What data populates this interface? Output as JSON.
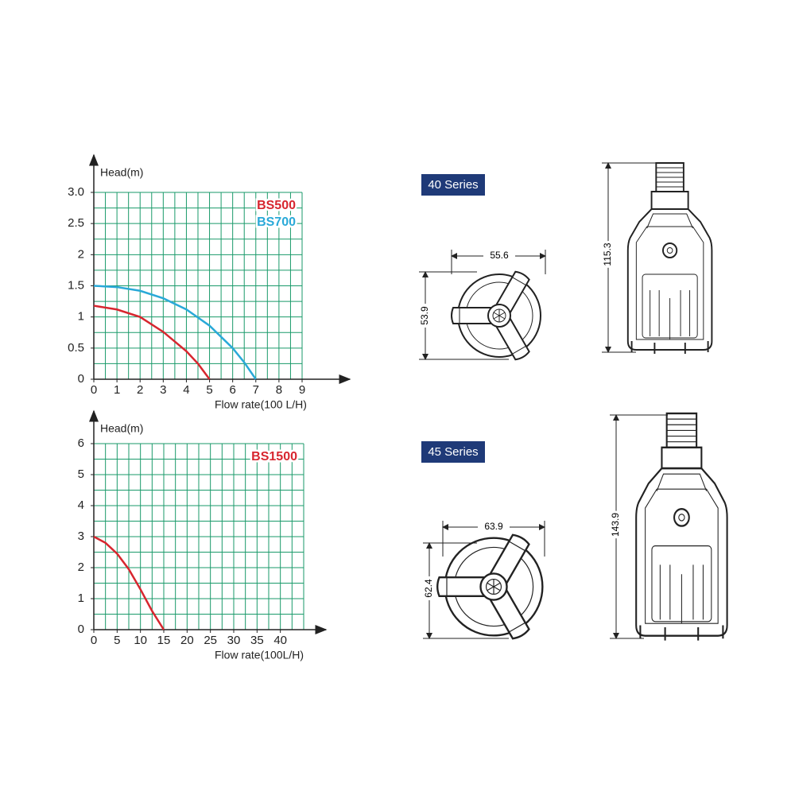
{
  "chart_data": [
    {
      "type": "line",
      "ylabel": "Head(m)",
      "xlabel": "Flow rate(100 L/H)",
      "xlim": [
        0,
        9
      ],
      "ylim": [
        0,
        3
      ],
      "xticks": [
        0,
        1,
        2,
        3,
        4,
        5,
        6,
        7,
        8,
        9
      ],
      "yticks": [
        0,
        0.5,
        1,
        1.5,
        2,
        2.5,
        {
          "value": 3,
          "label": "3.0"
        }
      ],
      "xminorticks": [
        0,
        0.5,
        1,
        1.5,
        2,
        2.5,
        3,
        3.5,
        4,
        4.5,
        5,
        5.5,
        6,
        6.5,
        7,
        7.5,
        8,
        8.5,
        9
      ],
      "yminorticks": [
        0,
        0.25,
        0.5,
        0.75,
        1,
        1.25,
        1.5,
        1.75,
        2,
        2.25,
        2.5,
        2.75,
        3
      ],
      "grid": true,
      "grid_color": "#1a9a6a",
      "legend": "top-right",
      "series": [
        {
          "name": "BS500",
          "color": "#d7262f",
          "x": [
            0,
            1,
            2,
            3,
            4,
            4.5,
            5
          ],
          "values": [
            1.18,
            1.12,
            1.0,
            0.76,
            0.45,
            0.25,
            0
          ]
        },
        {
          "name": "BS700",
          "color": "#29a9d8",
          "x": [
            0,
            1,
            2,
            3,
            4,
            5,
            6,
            6.5,
            7
          ],
          "values": [
            1.5,
            1.48,
            1.42,
            1.3,
            1.12,
            0.86,
            0.5,
            0.27,
            0
          ]
        }
      ]
    },
    {
      "type": "line",
      "ylabel": "Head(m)",
      "xlabel": "Flow rate(100L/H)",
      "xlim": [
        0,
        45
      ],
      "ylim": [
        0,
        6
      ],
      "xticks": [
        0,
        5,
        10,
        15,
        20,
        25,
        30,
        35,
        40
      ],
      "yticks": [
        0,
        1,
        2,
        3,
        4,
        5,
        6
      ],
      "xminorticks": [
        0,
        2.5,
        5,
        7.5,
        10,
        12.5,
        15,
        17.5,
        20,
        22.5,
        25,
        27.5,
        30,
        32.5,
        35,
        37.5,
        40,
        42.5,
        45
      ],
      "yminorticks": [
        0,
        0.5,
        1,
        1.5,
        2,
        2.5,
        3,
        3.5,
        4,
        4.5,
        5,
        5.5,
        6
      ],
      "grid": true,
      "grid_color": "#1a9a6a",
      "legend": "top-right",
      "series": [
        {
          "name": "BS1500",
          "color": "#d7262f",
          "x": [
            0,
            2.5,
            5,
            7.5,
            10,
            12.5,
            15
          ],
          "values": [
            3,
            2.8,
            2.45,
            1.95,
            1.3,
            0.6,
            0
          ]
        }
      ]
    }
  ],
  "drawings": [
    {
      "series": "40 Series",
      "width": "55.6",
      "depth": "53.9",
      "height": "115.3"
    },
    {
      "series": "45 Series",
      "width": "63.9",
      "depth": "62.4",
      "height": "143.9"
    }
  ]
}
